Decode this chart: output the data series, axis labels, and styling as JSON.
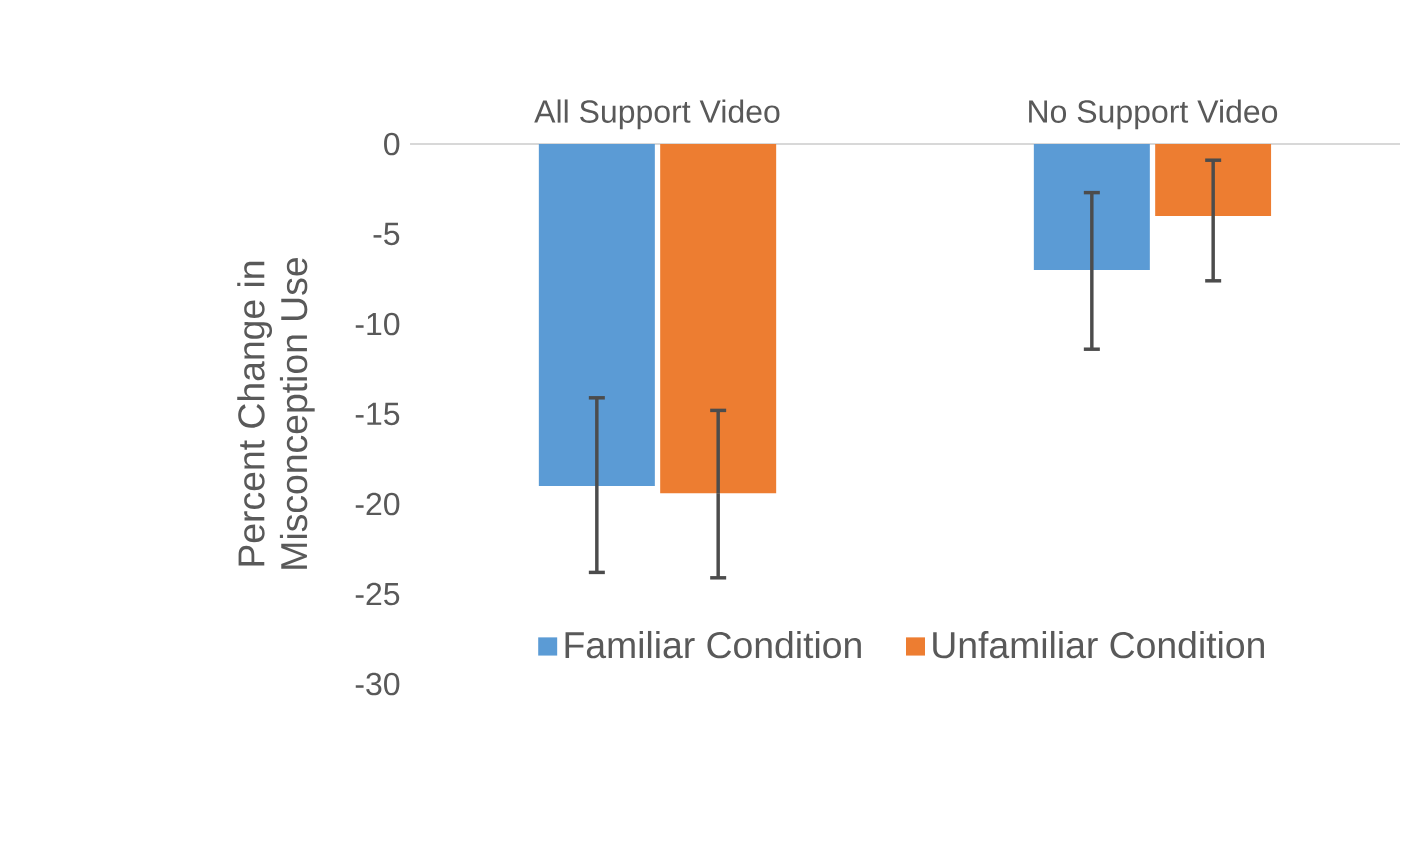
{
  "chart_data": {
    "type": "bar",
    "ylabel": "Percent Change in Misconception Use",
    "categories": [
      "All Support Video",
      "No Support Video"
    ],
    "series": [
      {
        "name": "Familiar Condition",
        "color": "#5b9bd5",
        "values": [
          -19,
          -7
        ],
        "errors": [
          [
            -23.8,
            -14.1
          ],
          [
            -11.4,
            -2.7
          ]
        ]
      },
      {
        "name": "Unfamiliar Condition",
        "color": "#ed7d31",
        "values": [
          -19.4,
          -4
        ],
        "errors": [
          [
            -24.1,
            -14.8
          ],
          [
            -7.6,
            -0.9
          ]
        ]
      }
    ],
    "ylim": [
      -30,
      0
    ],
    "yticks": [
      0,
      -5,
      -10,
      -15,
      -20,
      -25,
      -30
    ],
    "legend": "bottom",
    "grid": false
  }
}
